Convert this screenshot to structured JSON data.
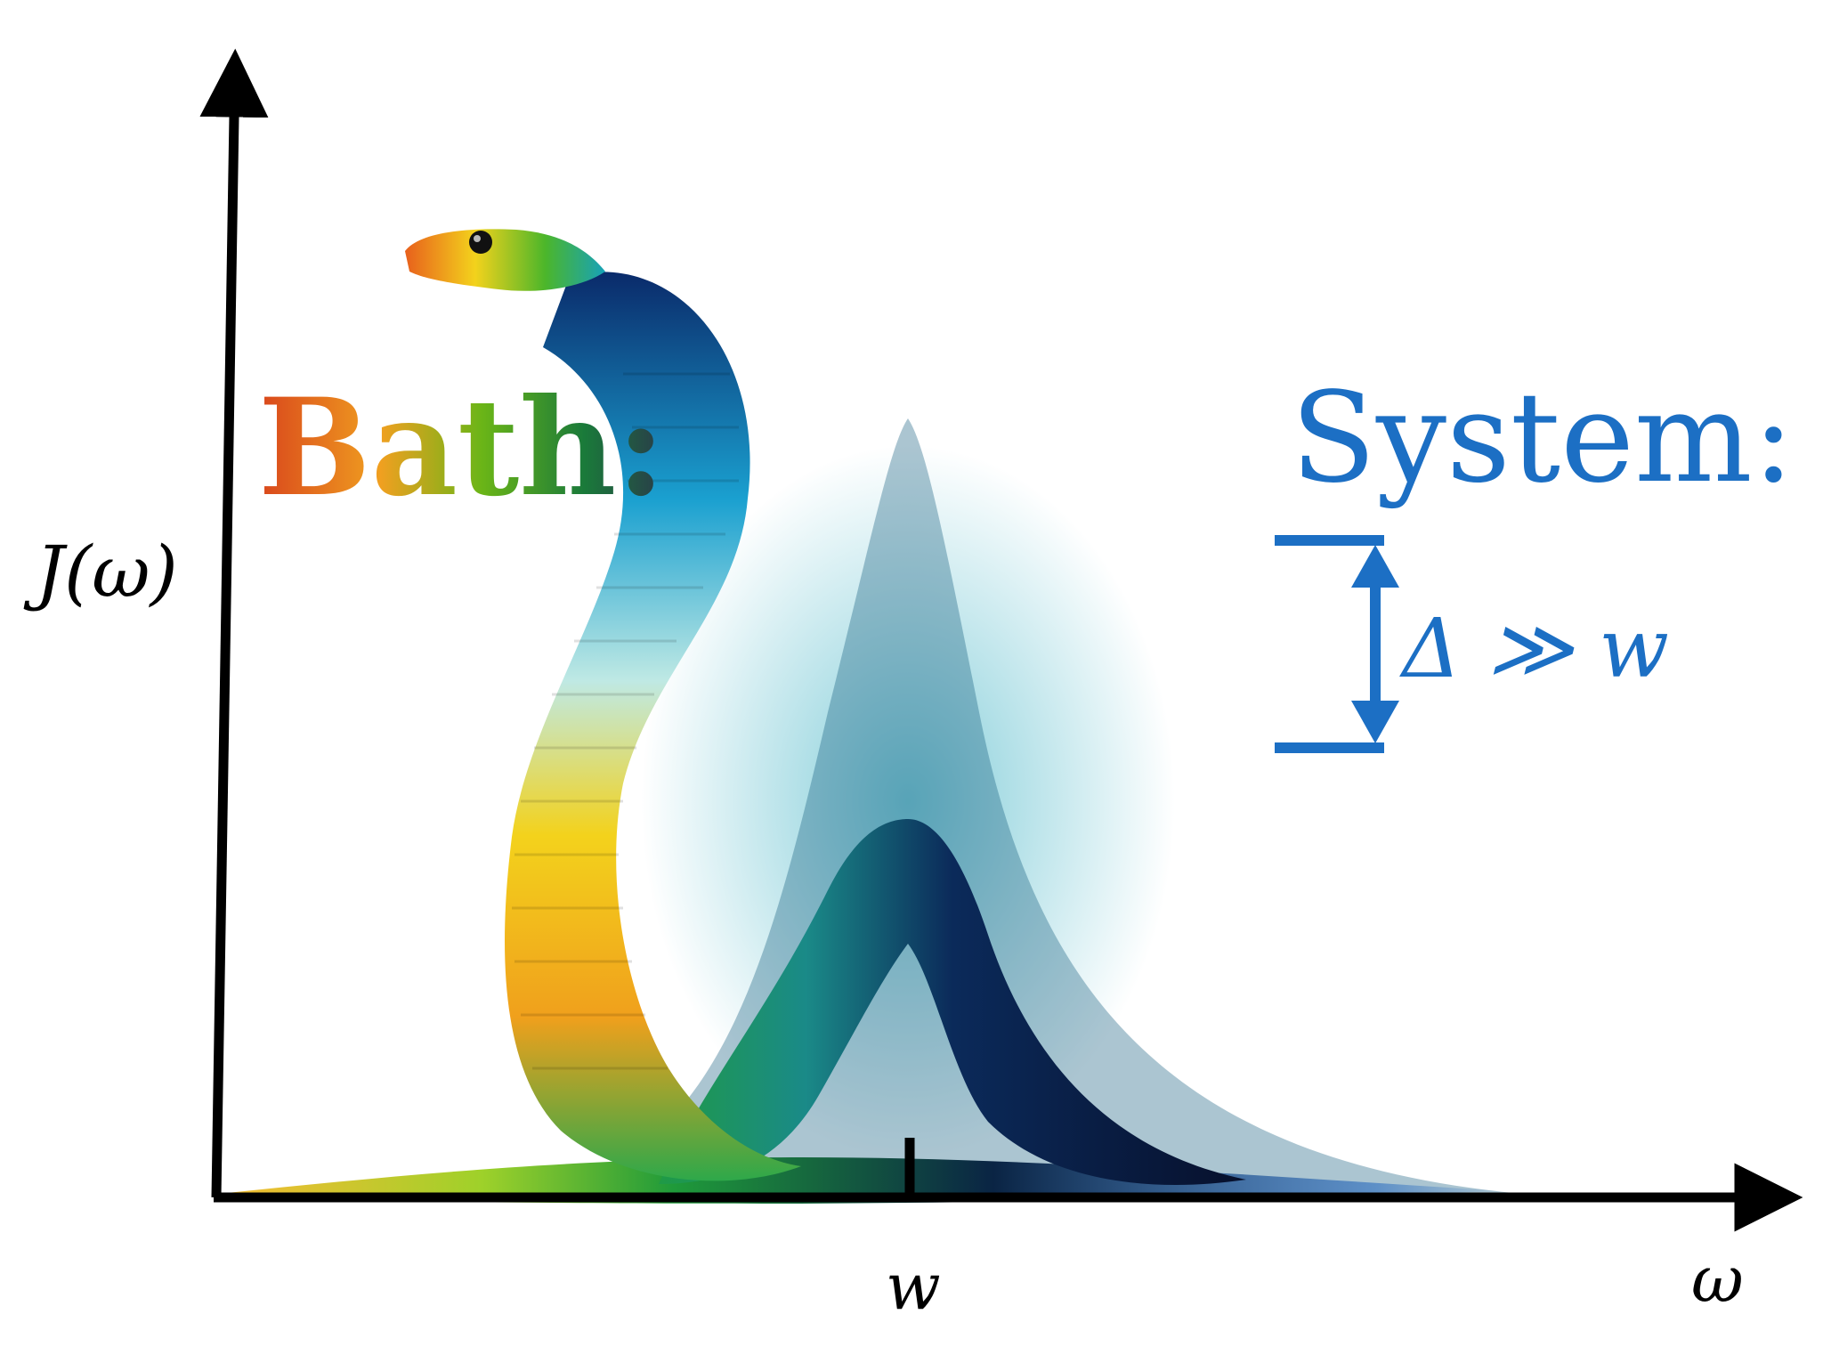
{
  "labels": {
    "y_axis": "J(ω)",
    "x_axis": "ω",
    "tick": "w",
    "bath_title": "Bath:",
    "system_title": "System:",
    "gap_relation": "Δ ≫ w"
  },
  "bath_figure": "snake-shaped spectral density curve",
  "colors": {
    "system": "#1c6fc4",
    "axis": "#000000",
    "bath_gradient": [
      "#d9461c",
      "#f0a020",
      "#6ab517",
      "#1a7a3a",
      "#2a3a4a"
    ],
    "snake_dark": "#071336",
    "snake_mid": "#0f5f8e",
    "snake_teal": "#17a2b8",
    "snake_green": "#2ea84a",
    "snake_yellow": "#f3d21c",
    "snake_orange": "#e8601c"
  }
}
